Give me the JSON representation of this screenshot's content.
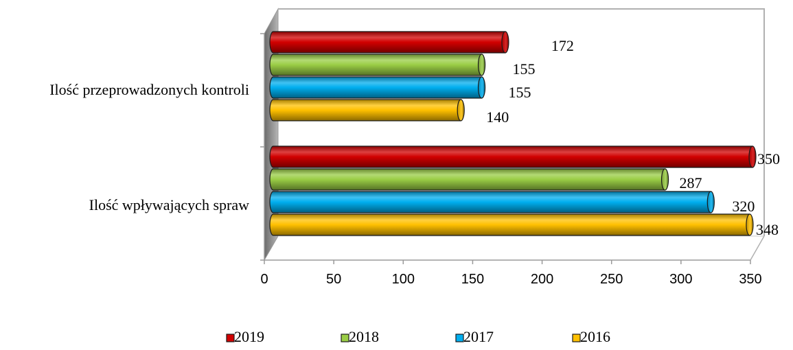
{
  "chart_data": {
    "type": "bar",
    "orientation": "horizontal",
    "style": "3d-cylinder",
    "categories": [
      "Ilość przeprowadzonych kontroli",
      "Ilość wpływających spraw"
    ],
    "series": [
      {
        "name": "2019",
        "color": "#d10000",
        "values": [
          172,
          350
        ]
      },
      {
        "name": "2018",
        "color": "#9acd45",
        "values": [
          155,
          287
        ]
      },
      {
        "name": "2017",
        "color": "#00aeef",
        "values": [
          155,
          320
        ]
      },
      {
        "name": "2016",
        "color": "#ffc000",
        "values": [
          140,
          348
        ]
      }
    ],
    "xlim": [
      0,
      350
    ],
    "xticks": [
      "0",
      "50",
      "100",
      "150",
      "200",
      "250",
      "300",
      "350"
    ],
    "grid": false,
    "legend_position": "bottom",
    "title": "",
    "xlabel": "",
    "ylabel": ""
  }
}
